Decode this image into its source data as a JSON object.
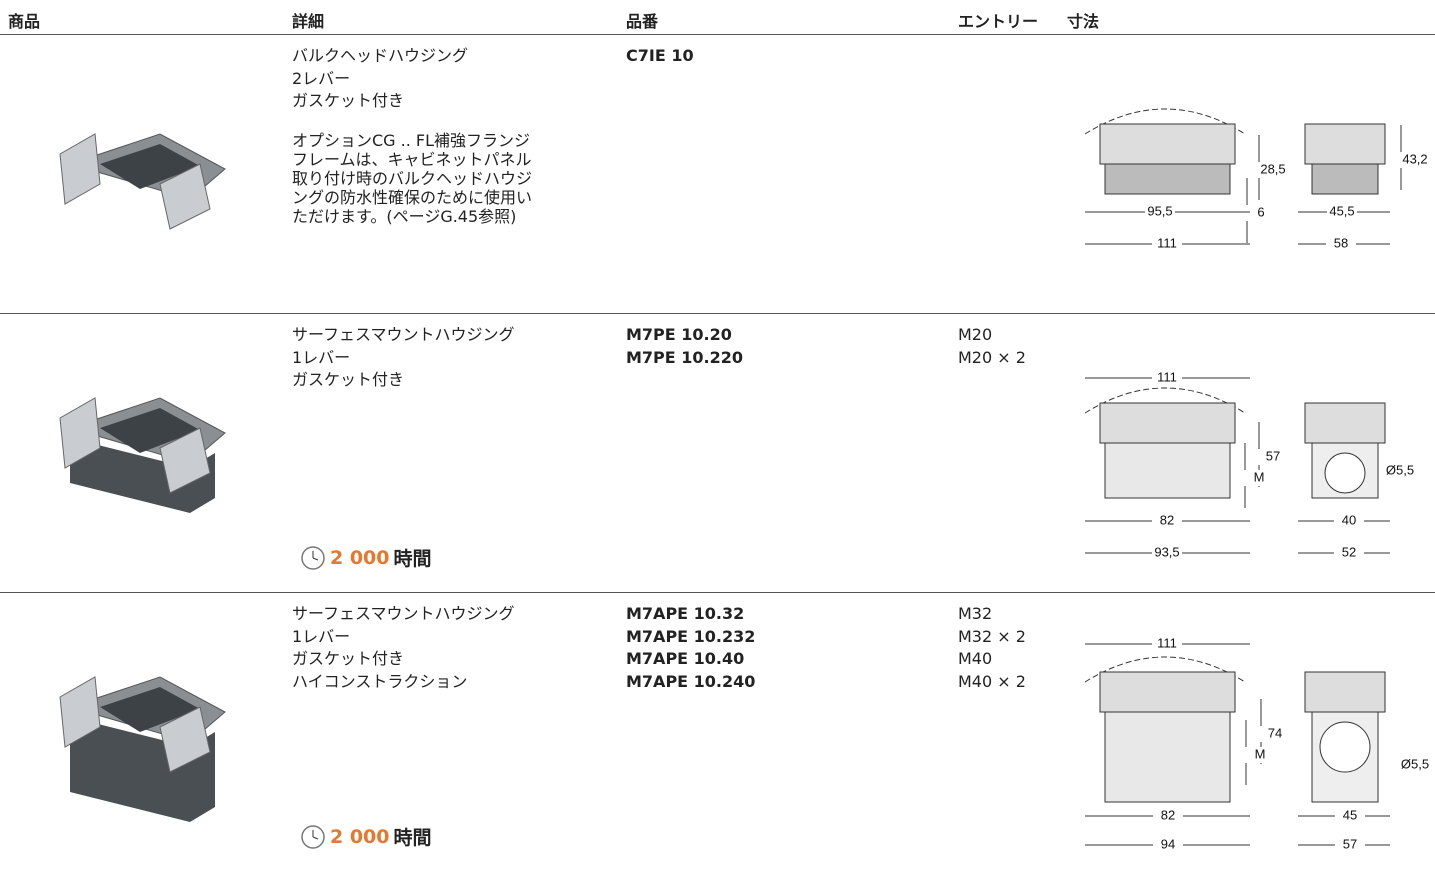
{
  "header": {
    "columns": [
      "商品",
      "詳細",
      "品番",
      "エントリー",
      "寸法"
    ]
  },
  "rows": [
    {
      "details": [
        "バルクヘッドハウジング",
        "2レバー",
        "ガスケット付き"
      ],
      "note": [
        "オプションCG .. FL補強フランジ",
        "フレームは、キャビネットパネル",
        "取り付け時のバルクヘッドハウジ",
        "ングの防水性確保のために使用い",
        "ただけます。(ページG.45参照)"
      ],
      "part_numbers": [
        "C7IE 10"
      ],
      "dimensions": {
        "front": [
          "28,5",
          "6",
          "95,5",
          "111"
        ],
        "side": [
          "43,2",
          "45,5",
          "58"
        ]
      }
    },
    {
      "details": [
        "サーフェスマウントハウジング",
        "1レバー",
        "ガスケット付き"
      ],
      "part_numbers": [
        "M7PE 10.20",
        "M7PE 10.220"
      ],
      "entries": [
        "M20",
        "M20 × 2"
      ],
      "lifetime": {
        "value": "2 000",
        "unit": "時間"
      },
      "dimensions": {
        "front": [
          "111",
          "57",
          "M",
          "82",
          "93,5"
        ],
        "side": [
          "Ø5,5",
          "40",
          "52"
        ]
      }
    },
    {
      "details": [
        "サーフェスマウントハウジング",
        "1レバー",
        "ガスケット付き",
        "ハイコンストラクション"
      ],
      "part_numbers": [
        "M7APE 10.32",
        "M7APE 10.232",
        "M7APE 10.40",
        "M7APE 10.240"
      ],
      "entries": [
        "M32",
        "M32 × 2",
        "M40",
        "M40 × 2"
      ],
      "lifetime": {
        "value": "2 000",
        "unit": "時間"
      },
      "dimensions": {
        "front": [
          "111",
          "74",
          "M",
          "82",
          "94"
        ],
        "side": [
          "Ø5,5",
          "45",
          "57"
        ]
      }
    }
  ]
}
